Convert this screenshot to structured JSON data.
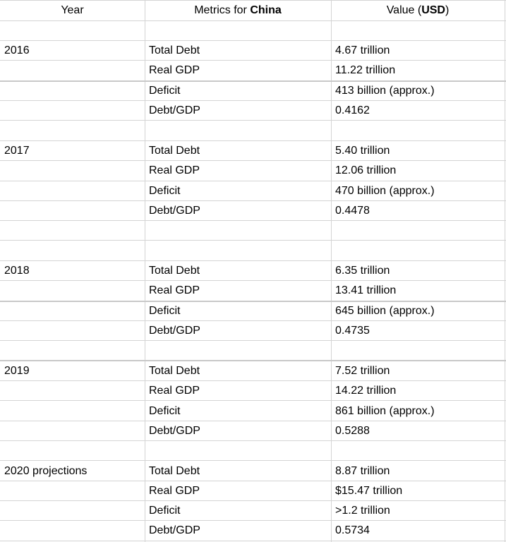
{
  "header": {
    "col_year": "Year",
    "col_metrics_prefix": "Metrics for ",
    "col_metrics_country": "China",
    "col_value_prefix": "Value (",
    "col_value_unit": "USD",
    "col_value_suffix": ")"
  },
  "rows": [
    {
      "year": "2016",
      "metric": "Total Debt",
      "value": "4.67 trillion"
    },
    {
      "year": "",
      "metric": "Real GDP",
      "value": "11.22 trillion"
    },
    {
      "year": "",
      "metric": "Deficit",
      "value": "413 billion (approx.)"
    },
    {
      "year": "",
      "metric": "Debt/GDP",
      "value": "0.4162"
    },
    {
      "year": "2017",
      "metric": "Total Debt",
      "value": "5.40 trillion"
    },
    {
      "year": "",
      "metric": "Real GDP",
      "value": "12.06 trillion"
    },
    {
      "year": "",
      "metric": "Deficit",
      "value": "470 billion (approx.)"
    },
    {
      "year": "",
      "metric": "Debt/GDP",
      "value": "0.4478"
    },
    {
      "year": "2018",
      "metric": "Total Debt",
      "value": "6.35 trillion"
    },
    {
      "year": "",
      "metric": "Real GDP",
      "value": "13.41 trillion"
    },
    {
      "year": "",
      "metric": "Deficit",
      "value": "645 billion (approx.)"
    },
    {
      "year": "",
      "metric": "Debt/GDP",
      "value": "0.4735"
    },
    {
      "year": "2019",
      "metric": "Total Debt",
      "value": "7.52 trillion"
    },
    {
      "year": "",
      "metric": "Real GDP",
      "value": "14.22 trillion"
    },
    {
      "year": "",
      "metric": "Deficit",
      "value": "861 billion (approx.)"
    },
    {
      "year": "",
      "metric": "Debt/GDP",
      "value": "0.5288"
    },
    {
      "year": "2020 projections",
      "metric": "Total Debt",
      "value": "8.87 trillion"
    },
    {
      "year": "",
      "metric": "Real GDP",
      "value": "$15.47 trillion"
    },
    {
      "year": "",
      "metric": "Deficit",
      "value": ">1.2 trillion"
    },
    {
      "year": "",
      "metric": "Debt/GDP",
      "value": "0.5734"
    }
  ]
}
